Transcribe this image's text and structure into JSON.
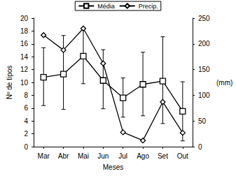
{
  "chart_data": {
    "type": "line",
    "x_label": "Meses",
    "y_label": "Nº de tipos",
    "y2_label": "(mm)",
    "categories": [
      "Mar",
      "Abr",
      "Mai",
      "Jun",
      "Jul",
      "Ago",
      "Set",
      "Out"
    ],
    "series": [
      {
        "name": "Média",
        "color": "#000000",
        "marker": "square",
        "values": [
          10.8,
          11.3,
          14.1,
          10.3,
          7.6,
          9.7,
          10.2,
          5.5
        ],
        "error_low": [
          6.4,
          5.8,
          9.8,
          5.9,
          4.6,
          4.8,
          3.6,
          0.9
        ],
        "error_high": [
          15.4,
          17.3,
          18.5,
          15.1,
          10.7,
          14.7,
          17.1,
          10.1
        ]
      },
      {
        "name": "Precip.",
        "color": "#000000",
        "marker": "diamond",
        "axis": "y2",
        "values": [
          217,
          188,
          230,
          162,
          28,
          12,
          87,
          27
        ]
      }
    ],
    "ylim": [
      0,
      20
    ],
    "yticks": [
      0,
      2,
      4,
      6,
      8,
      10,
      12,
      14,
      16,
      18,
      20
    ],
    "y2lim": [
      0,
      250
    ],
    "y2ticks": [
      0,
      50,
      100,
      150,
      200,
      250
    ],
    "grid": false,
    "legend": "top"
  }
}
